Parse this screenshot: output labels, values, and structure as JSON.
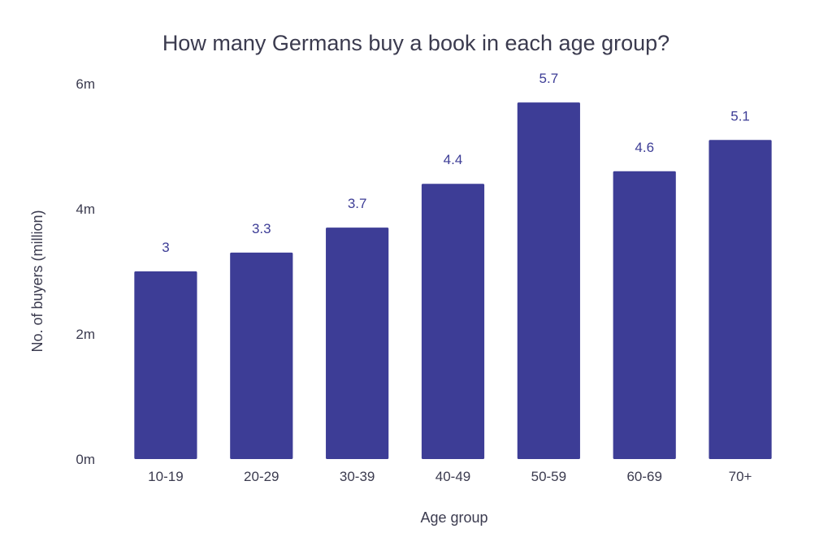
{
  "chart_data": {
    "type": "bar",
    "title": "How many Germans buy a book in each age group?",
    "xlabel": "Age group",
    "ylabel": "No. of buyers (million)",
    "categories": [
      "10-19",
      "20-29",
      "30-39",
      "40-49",
      "50-59",
      "60-69",
      "70+"
    ],
    "values": [
      3,
      3.3,
      3.7,
      4.4,
      5.7,
      4.6,
      5.1
    ],
    "data_labels": [
      "3",
      "3.3",
      "3.7",
      "4.4",
      "5.7",
      "4.6",
      "5.1"
    ],
    "ylim": [
      0,
      6
    ],
    "yticks": [
      0,
      2,
      4,
      6
    ],
    "ytick_labels": [
      "0m",
      "2m",
      "4m",
      "6m"
    ],
    "grid": false,
    "legend": "none",
    "colors": {
      "bar": "#3d3d96",
      "data_label": "#3d3d96",
      "text": "#3b3b4f"
    }
  }
}
